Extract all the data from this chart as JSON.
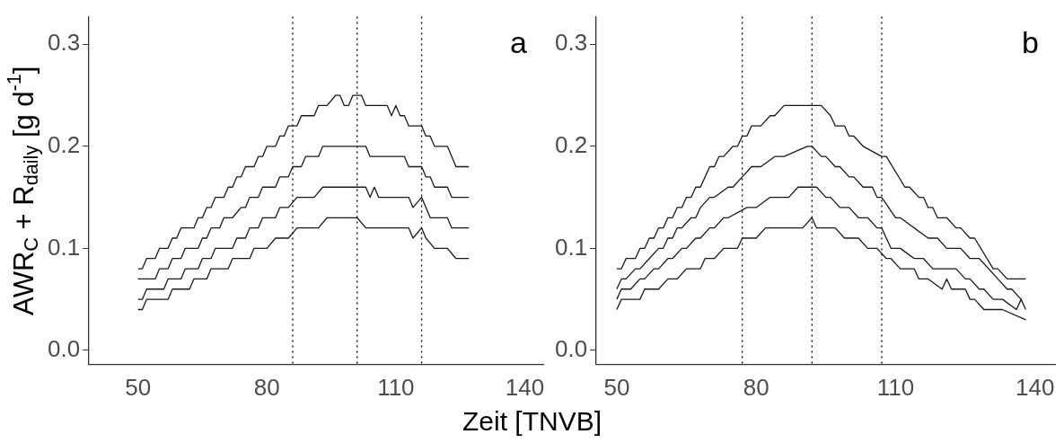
{
  "chart_data": [
    {
      "type": "line",
      "ylabel": "AWR$_{C}$ + R$_{daily}$ [g d$^{-1}$]",
      "xlabel": "Zeit [TNVB]",
      "xlim": [
        38.6,
        144.3
      ],
      "xticks": [
        50,
        80,
        110,
        140
      ],
      "ylim": [
        -0.014,
        0.327
      ],
      "yticks": [
        {
          "value": 0,
          "label": "0.0"
        },
        0.1,
        0.2,
        0.3
      ],
      "grid": false,
      "legend": false,
      "marker": "none",
      "line_style": "solid",
      "annotations": [
        "a"
      ],
      "ref_lines": [
        {
          "axis": "x",
          "value": 86,
          "line_style": "dotted",
          "color": "#000000"
        },
        {
          "axis": "x",
          "value": 101,
          "line_style": "dotted",
          "color": "#000000"
        },
        {
          "axis": "x",
          "value": 116,
          "line_style": "dotted",
          "color": "#000000"
        }
      ],
      "series": [
        {
          "color": "#1a1a1a",
          "x": [
            50,
            51,
            52,
            54,
            55,
            57,
            58,
            59,
            60,
            63,
            64,
            65,
            66,
            67,
            68,
            70,
            71,
            72,
            73,
            74,
            75,
            77,
            78,
            79,
            80,
            82,
            83,
            84,
            85,
            87,
            88,
            91,
            92,
            94,
            96,
            97,
            98,
            99,
            100,
            102,
            103,
            108,
            109,
            110,
            111,
            112,
            113,
            116,
            117,
            118,
            119,
            122,
            124,
            127
          ],
          "values": [
            0.08,
            0.08,
            0.09,
            0.09,
            0.1,
            0.1,
            0.11,
            0.11,
            0.12,
            0.12,
            0.13,
            0.13,
            0.14,
            0.14,
            0.15,
            0.15,
            0.16,
            0.16,
            0.17,
            0.17,
            0.18,
            0.18,
            0.19,
            0.19,
            0.2,
            0.2,
            0.21,
            0.21,
            0.22,
            0.22,
            0.23,
            0.23,
            0.24,
            0.24,
            0.25,
            0.25,
            0.24,
            0.24,
            0.25,
            0.25,
            0.24,
            0.24,
            0.23,
            0.24,
            0.23,
            0.23,
            0.22,
            0.22,
            0.21,
            0.21,
            0.2,
            0.2,
            0.18,
            0.18
          ]
        },
        {
          "color": "#1a1a1a",
          "x": [
            50,
            54,
            55,
            57,
            58,
            60,
            61,
            64,
            65,
            66,
            67,
            69,
            70,
            72,
            74,
            75,
            76,
            78,
            79,
            82,
            83,
            85,
            86,
            88,
            89,
            92,
            93,
            103,
            104,
            112,
            113,
            116,
            117,
            118,
            119,
            122,
            123,
            127
          ],
          "values": [
            0.07,
            0.07,
            0.08,
            0.08,
            0.09,
            0.09,
            0.1,
            0.1,
            0.11,
            0.11,
            0.12,
            0.12,
            0.13,
            0.13,
            0.14,
            0.14,
            0.15,
            0.15,
            0.16,
            0.16,
            0.17,
            0.17,
            0.18,
            0.18,
            0.19,
            0.19,
            0.2,
            0.2,
            0.19,
            0.19,
            0.18,
            0.18,
            0.17,
            0.17,
            0.16,
            0.16,
            0.15,
            0.15
          ]
        },
        {
          "color": "#1a1a1a",
          "x": [
            50,
            51,
            52,
            56,
            57,
            60,
            61,
            64,
            65,
            67,
            68,
            72,
            73,
            75,
            76,
            78,
            79,
            82,
            83,
            85,
            87,
            91,
            93,
            103,
            104,
            105,
            106,
            113,
            114,
            116,
            118,
            122,
            123,
            127
          ],
          "values": [
            0.05,
            0.05,
            0.06,
            0.06,
            0.07,
            0.07,
            0.08,
            0.08,
            0.09,
            0.09,
            0.1,
            0.1,
            0.11,
            0.11,
            0.12,
            0.12,
            0.13,
            0.13,
            0.14,
            0.14,
            0.15,
            0.15,
            0.16,
            0.16,
            0.15,
            0.16,
            0.15,
            0.15,
            0.14,
            0.15,
            0.13,
            0.13,
            0.12,
            0.12
          ]
        },
        {
          "color": "#1a1a1a",
          "x": [
            50,
            51,
            52,
            57,
            58,
            62,
            63,
            66,
            67,
            71,
            72,
            76,
            77,
            80,
            82,
            85,
            87,
            92,
            94,
            101,
            103,
            113,
            114,
            116,
            117,
            119,
            122,
            124,
            127
          ],
          "values": [
            0.04,
            0.04,
            0.05,
            0.05,
            0.06,
            0.06,
            0.07,
            0.07,
            0.08,
            0.08,
            0.09,
            0.09,
            0.1,
            0.1,
            0.11,
            0.11,
            0.12,
            0.12,
            0.13,
            0.13,
            0.12,
            0.12,
            0.11,
            0.12,
            0.11,
            0.1,
            0.1,
            0.09,
            0.09
          ]
        }
      ]
    },
    {
      "type": "line",
      "xlim": [
        45.6,
        144.3
      ],
      "xticks": [
        50,
        80,
        110,
        140
      ],
      "ylim": [
        -0.014,
        0.327
      ],
      "yticks": [
        {
          "value": 0,
          "label": "0.0"
        },
        0.1,
        0.2,
        0.3
      ],
      "grid": false,
      "legend": false,
      "marker": "none",
      "line_style": "solid",
      "annotations": [
        "b"
      ],
      "ref_lines": [
        {
          "axis": "x",
          "value": 77,
          "line_style": "dotted",
          "color": "#000000"
        },
        {
          "axis": "x",
          "value": 92,
          "line_style": "dotted",
          "color": "#000000"
        },
        {
          "axis": "x",
          "value": 107,
          "line_style": "dotted",
          "color": "#000000"
        }
      ],
      "series": [
        {
          "color": "#1a1a1a",
          "x": [
            50,
            51,
            52,
            54,
            55,
            56,
            57,
            58,
            59,
            60,
            61,
            62,
            63,
            64,
            65,
            66,
            67,
            68,
            69,
            70,
            71,
            72,
            73,
            75,
            76,
            77,
            78,
            79,
            81,
            83,
            84,
            86,
            94,
            96,
            97,
            99,
            100,
            101,
            103,
            107,
            108,
            112,
            113,
            115,
            116,
            117,
            118,
            119,
            121,
            123,
            124,
            126,
            127,
            131,
            132,
            134,
            138
          ],
          "values": [
            0.08,
            0.08,
            0.09,
            0.09,
            0.1,
            0.1,
            0.11,
            0.11,
            0.12,
            0.12,
            0.13,
            0.13,
            0.14,
            0.14,
            0.15,
            0.15,
            0.16,
            0.16,
            0.17,
            0.18,
            0.18,
            0.19,
            0.19,
            0.2,
            0.2,
            0.21,
            0.21,
            0.22,
            0.22,
            0.23,
            0.23,
            0.24,
            0.24,
            0.23,
            0.22,
            0.22,
            0.21,
            0.21,
            0.2,
            0.19,
            0.19,
            0.16,
            0.16,
            0.15,
            0.15,
            0.14,
            0.14,
            0.13,
            0.13,
            0.12,
            0.12,
            0.11,
            0.11,
            0.08,
            0.08,
            0.07,
            0.07
          ]
        },
        {
          "color": "#1a1a1a",
          "x": [
            50,
            51,
            52,
            54,
            55,
            57,
            59,
            60,
            61,
            62,
            63,
            64,
            66,
            67,
            68,
            70,
            71,
            74,
            75,
            77,
            79,
            81,
            84,
            86,
            91,
            92,
            94,
            95,
            97,
            98,
            100,
            101,
            103,
            105,
            106,
            107,
            110,
            111,
            114,
            117,
            119,
            121,
            124,
            126,
            128,
            132,
            134,
            135,
            137
          ],
          "values": [
            0.06,
            0.07,
            0.07,
            0.08,
            0.08,
            0.09,
            0.1,
            0.1,
            0.11,
            0.11,
            0.12,
            0.12,
            0.13,
            0.13,
            0.14,
            0.15,
            0.15,
            0.16,
            0.16,
            0.17,
            0.18,
            0.18,
            0.19,
            0.19,
            0.2,
            0.2,
            0.19,
            0.19,
            0.18,
            0.18,
            0.17,
            0.17,
            0.16,
            0.16,
            0.15,
            0.15,
            0.13,
            0.13,
            0.12,
            0.11,
            0.11,
            0.1,
            0.1,
            0.09,
            0.09,
            0.07,
            0.06,
            0.06,
            0.05
          ]
        },
        {
          "color": "#1a1a1a",
          "x": [
            50,
            51,
            53,
            55,
            56,
            58,
            59,
            61,
            62,
            64,
            65,
            67,
            68,
            70,
            71,
            73,
            74,
            78,
            80,
            83,
            87,
            89,
            93,
            95,
            96,
            98,
            100,
            102,
            104,
            106,
            107,
            109,
            111,
            114,
            116,
            118,
            123,
            125,
            126,
            128,
            129,
            131,
            133,
            136,
            137,
            138
          ],
          "values": [
            0.05,
            0.06,
            0.06,
            0.07,
            0.07,
            0.08,
            0.08,
            0.09,
            0.09,
            0.1,
            0.1,
            0.11,
            0.11,
            0.12,
            0.12,
            0.13,
            0.13,
            0.14,
            0.14,
            0.15,
            0.15,
            0.16,
            0.16,
            0.15,
            0.15,
            0.14,
            0.14,
            0.13,
            0.13,
            0.12,
            0.12,
            0.1,
            0.1,
            0.09,
            0.09,
            0.08,
            0.08,
            0.07,
            0.07,
            0.06,
            0.06,
            0.05,
            0.05,
            0.04,
            0.05,
            0.04
          ]
        },
        {
          "color": "#1a1a1a",
          "x": [
            50,
            51,
            55,
            56,
            59,
            61,
            63,
            65,
            68,
            69,
            71,
            73,
            76,
            77,
            80,
            82,
            90,
            92,
            93,
            97,
            99,
            102,
            104,
            106,
            108,
            109,
            111,
            114,
            115,
            117,
            120,
            121,
            122,
            125,
            126,
            127,
            129,
            133,
            138
          ],
          "values": [
            0.04,
            0.05,
            0.05,
            0.06,
            0.06,
            0.07,
            0.07,
            0.08,
            0.08,
            0.09,
            0.09,
            0.1,
            0.1,
            0.11,
            0.11,
            0.12,
            0.12,
            0.13,
            0.12,
            0.12,
            0.11,
            0.11,
            0.1,
            0.1,
            0.09,
            0.09,
            0.08,
            0.08,
            0.07,
            0.07,
            0.06,
            0.07,
            0.06,
            0.06,
            0.05,
            0.05,
            0.04,
            0.04,
            0.03
          ]
        }
      ]
    }
  ]
}
